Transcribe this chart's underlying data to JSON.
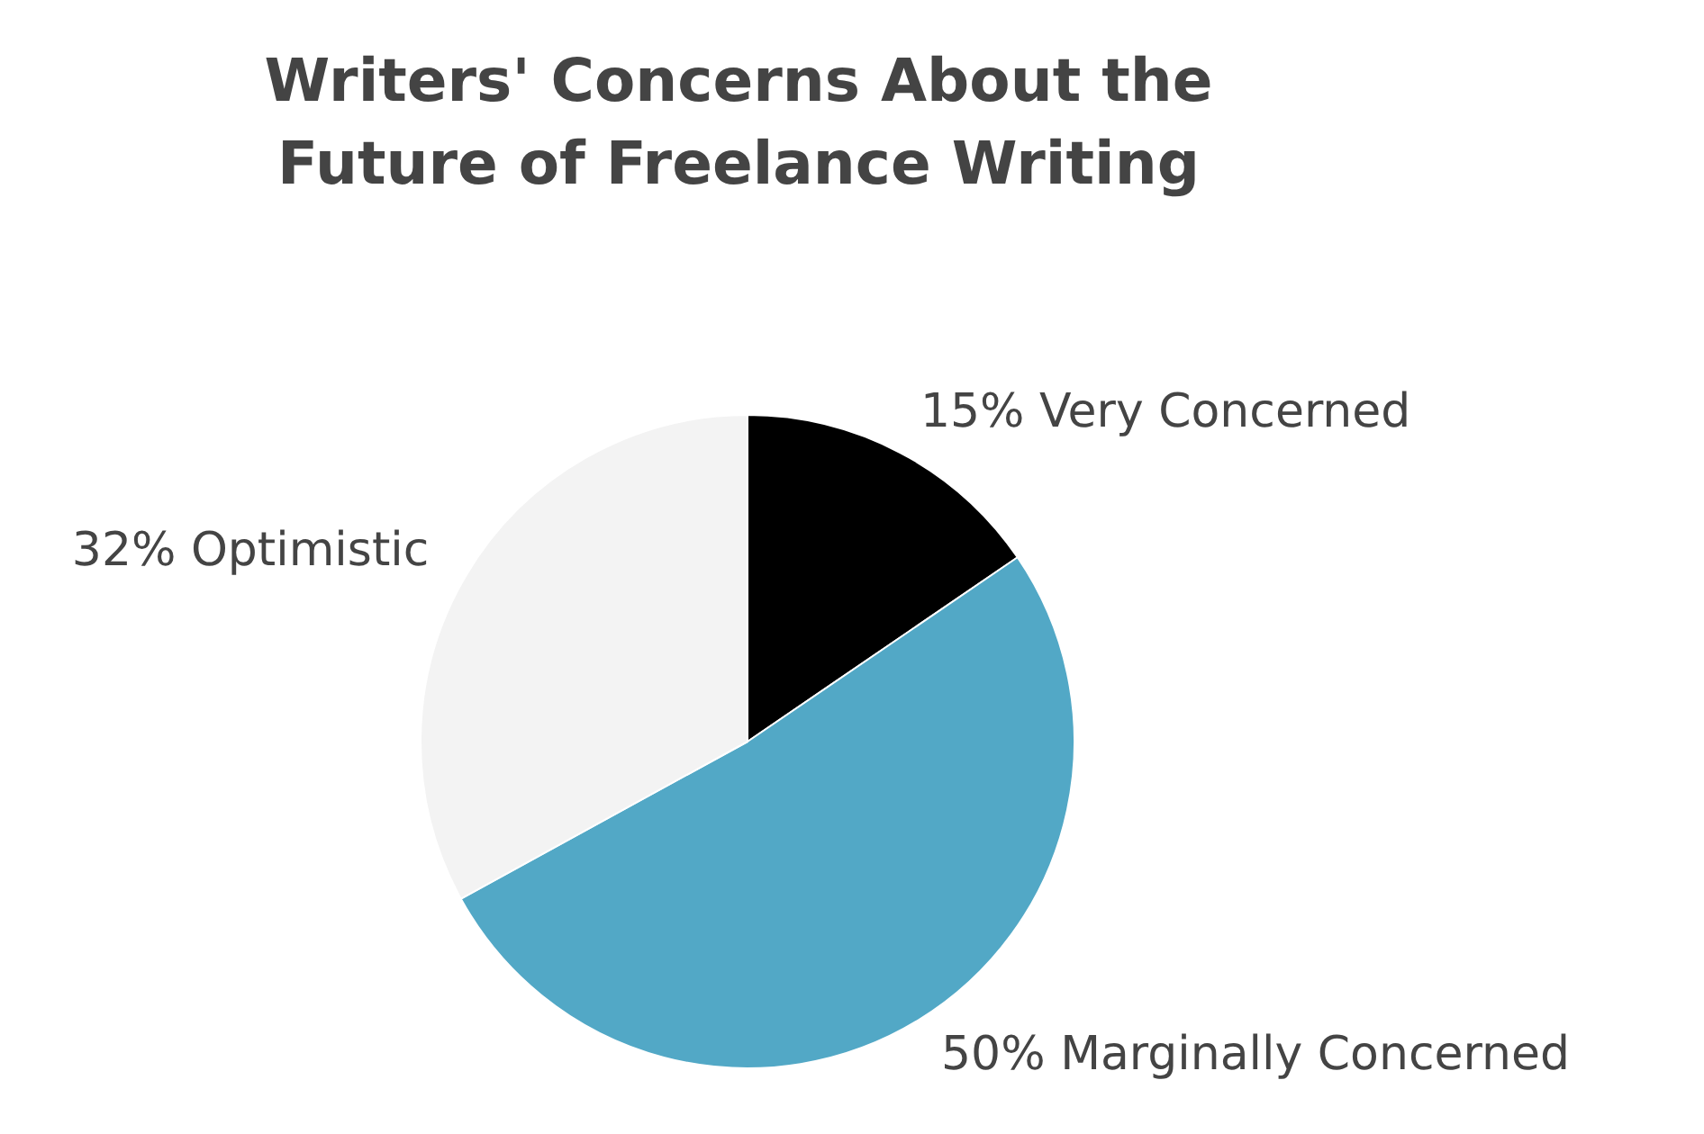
{
  "chart_data": {
    "type": "pie",
    "title": "Writers' Concerns About the Future of Freelance Writing",
    "categories": [
      "15% Very Concerned",
      "50% Marginally Concerned",
      "32% Optimistic"
    ],
    "values": [
      15,
      50,
      32
    ],
    "colors": [
      "#000000",
      "#52a8c6",
      "#f3f3f3"
    ],
    "legend": false
  }
}
